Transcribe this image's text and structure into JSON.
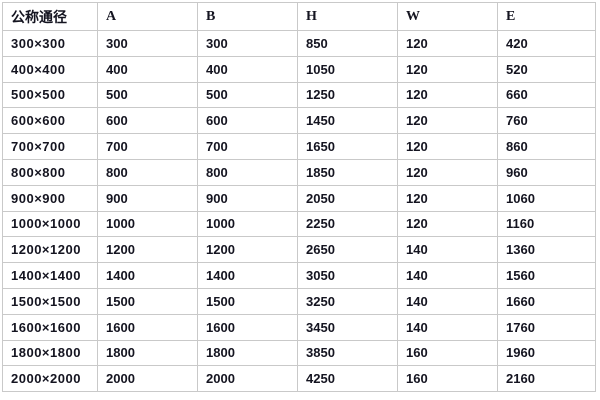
{
  "chart_data": {
    "type": "table",
    "columns": [
      "公称通径",
      "A",
      "B",
      "H",
      "W",
      "E"
    ],
    "rows": [
      [
        "300×300",
        "300",
        "300",
        "850",
        "120",
        "420"
      ],
      [
        "400×400",
        "400",
        "400",
        "1050",
        "120",
        "520"
      ],
      [
        "500×500",
        "500",
        "500",
        "1250",
        "120",
        "660"
      ],
      [
        "600×600",
        "600",
        "600",
        "1450",
        "120",
        "760"
      ],
      [
        "700×700",
        "700",
        "700",
        "1650",
        "120",
        "860"
      ],
      [
        "800×800",
        "800",
        "800",
        "1850",
        "120",
        "960"
      ],
      [
        "900×900",
        "900",
        "900",
        "2050",
        "120",
        "1060"
      ],
      [
        "1000×1000",
        "1000",
        "1000",
        "2250",
        "120",
        "1160"
      ],
      [
        "1200×1200",
        "1200",
        "1200",
        "2650",
        "140",
        "1360"
      ],
      [
        "1400×1400",
        "1400",
        "1400",
        "3050",
        "140",
        "1560"
      ],
      [
        "1500×1500",
        "1500",
        "1500",
        "3250",
        "140",
        "1660"
      ],
      [
        "1600×1600",
        "1600",
        "1600",
        "3450",
        "140",
        "1760"
      ],
      [
        "1800×1800",
        "1800",
        "1800",
        "3850",
        "160",
        "1960"
      ],
      [
        "2000×2000",
        "2000",
        "2000",
        "4250",
        "160",
        "2160"
      ]
    ],
    "title": "",
    "layout": {
      "grid": true,
      "header_row": true,
      "striping": false
    }
  },
  "colors": {
    "border": "#c9c9c9",
    "text": "#141420",
    "background": "#ffffff"
  }
}
